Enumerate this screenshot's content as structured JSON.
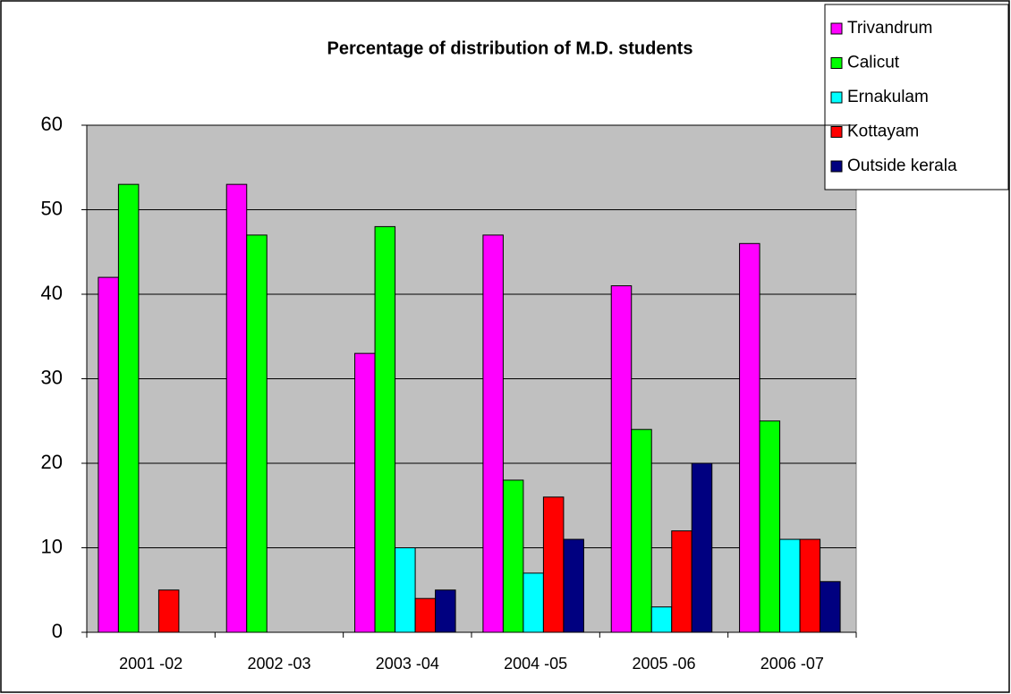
{
  "chart_data": {
    "type": "bar",
    "title": "Percentage of distribution of M.D. students",
    "categories": [
      "2001 -02",
      "2002 -03",
      "2003 -04",
      "2004 -05",
      "2005 -06",
      "2006 -07"
    ],
    "series": [
      {
        "name": "Trivandrum",
        "color": "#ff00ff",
        "values": [
          42,
          53,
          33,
          47,
          41,
          46
        ]
      },
      {
        "name": "Calicut",
        "color": "#00ff00",
        "values": [
          53,
          47,
          48,
          18,
          24,
          25
        ]
      },
      {
        "name": "Ernakulam",
        "color": "#00ffff",
        "values": [
          0,
          0,
          10,
          7,
          3,
          11
        ]
      },
      {
        "name": "Kottayam",
        "color": "#ff0000",
        "values": [
          5,
          0,
          4,
          16,
          12,
          11
        ]
      },
      {
        "name": "Outside kerala",
        "color": "#000080",
        "values": [
          0,
          0,
          5,
          11,
          20,
          6
        ]
      }
    ],
    "ylim": [
      0,
      60
    ],
    "yticks": [
      0,
      10,
      20,
      30,
      40,
      50,
      60
    ],
    "grid": true,
    "legend": "top-right"
  }
}
